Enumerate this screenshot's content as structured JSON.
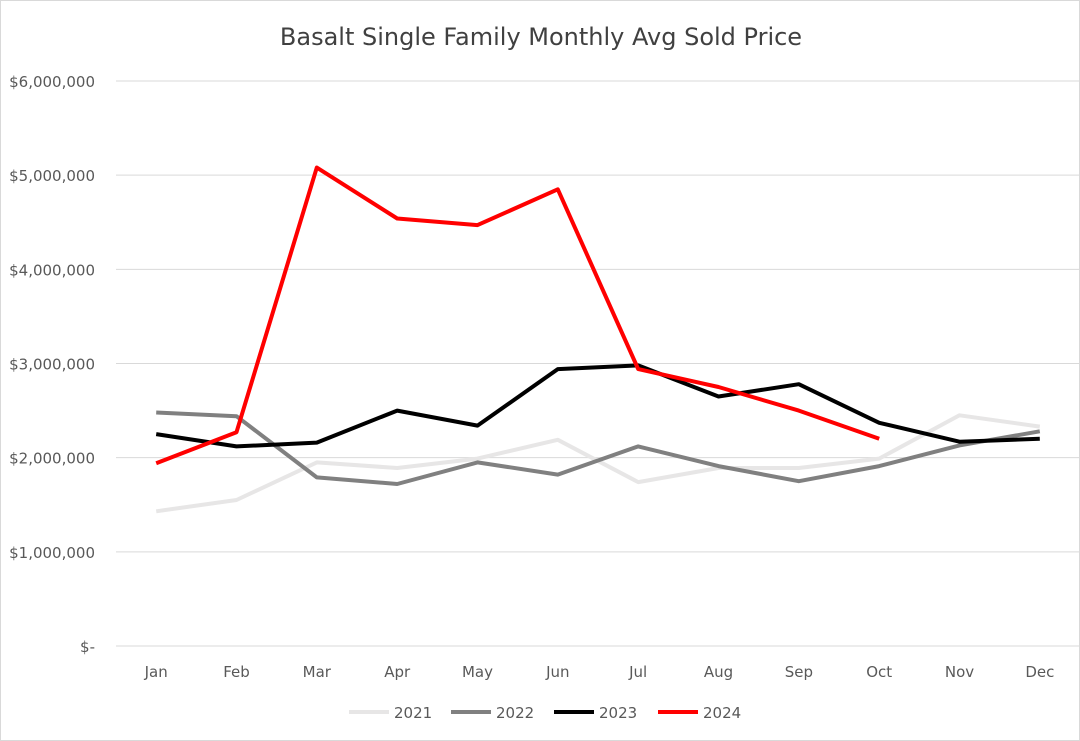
{
  "chart_data": {
    "type": "line",
    "title": "Basalt Single Family Monthly Avg Sold Price",
    "xlabel": "",
    "ylabel": "",
    "categories": [
      "Jan",
      "Feb",
      "Mar",
      "Apr",
      "May",
      "Jun",
      "Jul",
      "Aug",
      "Sep",
      "Oct",
      "Nov",
      "Dec"
    ],
    "ylim": [
      0,
      6000000
    ],
    "yticks": [
      0,
      1000000,
      2000000,
      3000000,
      4000000,
      5000000,
      6000000
    ],
    "ytick_labels": [
      "$-",
      "$1,000,000",
      "$2,000,000",
      "$3,000,000",
      "$4,000,000",
      "$5,000,000",
      "$6,000,000"
    ],
    "grid": "horizontal",
    "legend_position": "bottom",
    "series": [
      {
        "name": "2021",
        "color": "#e7e6e6",
        "values": [
          1430000,
          1550000,
          1950000,
          1890000,
          1990000,
          2190000,
          1740000,
          1890000,
          1890000,
          1990000,
          2450000,
          2330000
        ]
      },
      {
        "name": "2022",
        "color": "#808080",
        "values": [
          2480000,
          2440000,
          1790000,
          1720000,
          1950000,
          1820000,
          2120000,
          1910000,
          1750000,
          1910000,
          2130000,
          2280000
        ]
      },
      {
        "name": "2023",
        "color": "#000000",
        "values": [
          2250000,
          2120000,
          2160000,
          2500000,
          2340000,
          2940000,
          2980000,
          2650000,
          2780000,
          2370000,
          2170000,
          2200000
        ]
      },
      {
        "name": "2024",
        "color": "#ff0000",
        "values": [
          1940000,
          2270000,
          5080000,
          4540000,
          4470000,
          4850000,
          2940000,
          2750000,
          2500000,
          2200000,
          null,
          null
        ]
      }
    ]
  }
}
